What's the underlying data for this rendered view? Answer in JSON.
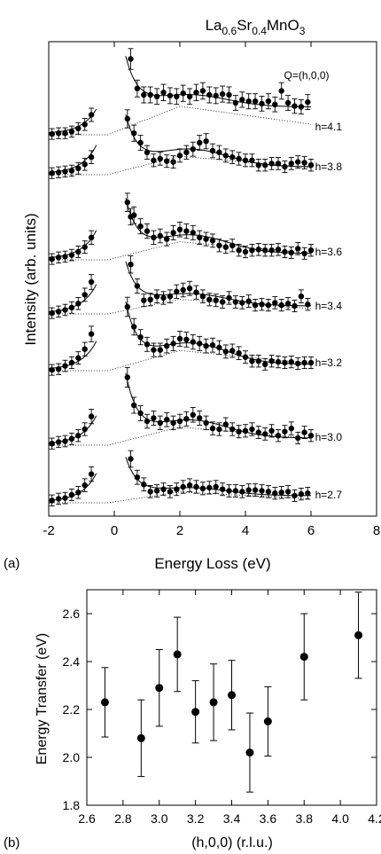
{
  "figure_title": {
    "main": "La",
    "sub1": "0.6",
    "mid": "Sr",
    "sub2": "0.4",
    "tail": "MnO",
    "sub3": "3"
  },
  "chart_data": [
    {
      "panel_label": "(a)",
      "type": "scatter",
      "xlabel": "Energy Loss (eV)",
      "ylabel": "Intensity (arb. units)",
      "xlim": [
        -2,
        8
      ],
      "xticks": [
        -2,
        0,
        2,
        4,
        6,
        8
      ],
      "y_ticks_labeled": false,
      "annotation": "Q=(h,0,0)",
      "series": [
        {
          "name": "h=4.1",
          "x": [
            -1.9,
            -1.7,
            -1.5,
            -1.3,
            -1.1,
            -0.9,
            -0.7,
            0.5,
            0.7,
            0.9,
            1.1,
            1.3,
            1.5,
            1.7,
            1.9,
            2.1,
            2.3,
            2.5,
            2.7,
            2.9,
            3.1,
            3.3,
            3.5,
            3.7,
            3.9,
            4.1,
            4.3,
            4.5,
            4.7,
            4.9,
            5.1,
            5.3,
            5.5,
            5.7,
            5.9
          ],
          "y": [
            0.01,
            0.02,
            0.02,
            0.04,
            0.08,
            0.13,
            0.25,
            0.95,
            0.58,
            0.5,
            0.5,
            0.48,
            0.53,
            0.49,
            0.48,
            0.52,
            0.48,
            0.53,
            0.55,
            0.5,
            0.49,
            0.51,
            0.5,
            0.4,
            0.44,
            0.42,
            0.42,
            0.39,
            0.42,
            0.38,
            0.55,
            0.4,
            0.36,
            0.35,
            0.41
          ]
        },
        {
          "name": "h=3.8",
          "x": [
            -1.9,
            -1.7,
            -1.5,
            -1.3,
            -1.1,
            -0.9,
            -0.7,
            0.4,
            0.6,
            0.8,
            1.0,
            1.2,
            1.4,
            1.6,
            1.8,
            2.0,
            2.2,
            2.4,
            2.6,
            2.8,
            3.0,
            3.2,
            3.4,
            3.6,
            3.8,
            4.0,
            4.2,
            4.4,
            4.6,
            4.8,
            5.0,
            5.2,
            5.4,
            5.6,
            5.8,
            6.0
          ],
          "y": [
            0.02,
            0.03,
            0.04,
            0.05,
            0.08,
            0.13,
            0.22,
            0.7,
            0.52,
            0.4,
            0.28,
            0.18,
            0.2,
            0.17,
            0.16,
            0.24,
            0.28,
            0.32,
            0.4,
            0.42,
            0.3,
            0.28,
            0.24,
            0.22,
            0.2,
            0.18,
            0.18,
            0.12,
            0.12,
            0.14,
            0.14,
            0.1,
            0.14,
            0.16,
            0.15,
            0.12
          ]
        },
        {
          "name": "h=3.6",
          "x": [
            -1.9,
            -1.7,
            -1.5,
            -1.3,
            -1.1,
            -0.9,
            -0.7,
            0.4,
            0.5,
            0.6,
            0.8,
            1.0,
            1.2,
            1.4,
            1.6,
            1.8,
            2.0,
            2.2,
            2.4,
            2.6,
            2.8,
            3.0,
            3.2,
            3.4,
            3.6,
            3.8,
            4.0,
            4.2,
            4.4,
            4.6,
            4.8,
            5.0,
            5.2,
            5.4,
            5.6,
            5.8,
            6.0
          ],
          "y": [
            0.01,
            0.03,
            0.04,
            0.06,
            0.1,
            0.16,
            0.28,
            0.72,
            0.54,
            0.56,
            0.42,
            0.36,
            0.28,
            0.3,
            0.26,
            0.34,
            0.38,
            0.36,
            0.34,
            0.28,
            0.26,
            0.24,
            0.18,
            0.16,
            0.18,
            0.12,
            0.1,
            0.12,
            0.13,
            0.12,
            0.12,
            0.13,
            0.1,
            0.09,
            0.14,
            0.08,
            0.12
          ]
        },
        {
          "name": "h=3.4",
          "x": [
            -1.9,
            -1.7,
            -1.5,
            -1.3,
            -1.1,
            -0.9,
            -0.7,
            0.5,
            0.7,
            0.9,
            1.1,
            1.3,
            1.5,
            1.7,
            1.9,
            2.1,
            2.3,
            2.5,
            2.7,
            2.9,
            3.1,
            3.3,
            3.5,
            3.7,
            3.9,
            4.1,
            4.3,
            4.5,
            4.7,
            4.9,
            5.1,
            5.3,
            5.5,
            5.7,
            5.9
          ],
          "y": [
            0.01,
            0.03,
            0.05,
            0.08,
            0.13,
            0.24,
            0.4,
            0.62,
            0.35,
            0.17,
            0.18,
            0.22,
            0.2,
            0.22,
            0.28,
            0.3,
            0.32,
            0.27,
            0.22,
            0.18,
            0.17,
            0.15,
            0.2,
            0.15,
            0.14,
            0.16,
            0.11,
            0.12,
            0.11,
            0.14,
            0.11,
            0.13,
            0.1,
            0.22,
            0.12
          ]
        },
        {
          "name": "h=3.2",
          "x": [
            -1.9,
            -1.7,
            -1.5,
            -1.3,
            -1.1,
            -0.9,
            -0.7,
            0.4,
            0.6,
            0.8,
            1.0,
            1.2,
            1.4,
            1.6,
            1.8,
            2.0,
            2.2,
            2.4,
            2.6,
            2.8,
            3.0,
            3.2,
            3.4,
            3.6,
            3.8,
            4.0,
            4.2,
            4.4,
            4.6,
            4.8,
            5.0,
            5.2,
            5.4,
            5.6,
            5.8,
            6.0
          ],
          "y": [
            0.01,
            0.02,
            0.06,
            0.1,
            0.16,
            0.27,
            0.46,
            0.8,
            0.55,
            0.42,
            0.33,
            0.26,
            0.26,
            0.31,
            0.34,
            0.4,
            0.39,
            0.36,
            0.34,
            0.31,
            0.32,
            0.29,
            0.24,
            0.25,
            0.22,
            0.17,
            0.12,
            0.12,
            0.08,
            0.12,
            0.11,
            0.1,
            0.11,
            0.09,
            0.1,
            0.1
          ]
        },
        {
          "name": "h=3.0",
          "x": [
            -1.9,
            -1.7,
            -1.5,
            -1.3,
            -1.1,
            -0.9,
            -0.7,
            0.4,
            0.6,
            0.8,
            1.0,
            1.2,
            1.4,
            1.6,
            1.8,
            2.0,
            2.2,
            2.4,
            2.6,
            2.8,
            3.0,
            3.2,
            3.4,
            3.6,
            3.8,
            4.0,
            4.2,
            4.4,
            4.6,
            4.8,
            5.0,
            5.2,
            5.4,
            5.6,
            5.8,
            6.0
          ],
          "y": [
            0.02,
            0.04,
            0.05,
            0.08,
            0.12,
            0.2,
            0.36,
            0.85,
            0.5,
            0.4,
            0.3,
            0.34,
            0.28,
            0.32,
            0.28,
            0.3,
            0.33,
            0.38,
            0.34,
            0.28,
            0.21,
            0.2,
            0.26,
            0.2,
            0.17,
            0.18,
            0.2,
            0.16,
            0.14,
            0.18,
            0.12,
            0.17,
            0.21,
            0.09,
            0.16,
            0.12
          ]
        },
        {
          "name": "h=2.7",
          "x": [
            -1.9,
            -1.7,
            -1.5,
            -1.3,
            -1.1,
            -0.9,
            -0.7,
            0.5,
            0.7,
            0.9,
            1.1,
            1.3,
            1.5,
            1.7,
            1.9,
            2.1,
            2.3,
            2.5,
            2.7,
            2.9,
            3.1,
            3.3,
            3.5,
            3.7,
            3.9,
            4.1,
            4.3,
            4.5,
            4.7,
            4.9,
            5.1,
            5.3,
            5.5,
            5.7,
            5.9
          ],
          "y": [
            0.03,
            0.05,
            0.06,
            0.1,
            0.13,
            0.22,
            0.36,
            0.55,
            0.32,
            0.23,
            0.14,
            0.15,
            0.17,
            0.14,
            0.17,
            0.2,
            0.22,
            0.2,
            0.18,
            0.19,
            0.2,
            0.17,
            0.15,
            0.15,
            0.14,
            0.16,
            0.16,
            0.15,
            0.14,
            0.12,
            0.13,
            0.14,
            0.09,
            0.11,
            0.12
          ]
        }
      ]
    },
    {
      "panel_label": "(b)",
      "type": "scatter",
      "xlabel": "(h,0,0) (r.l.u.)",
      "ylabel": "Energy Transfer (eV)",
      "xlim": [
        2.6,
        4.2
      ],
      "ylim": [
        1.8,
        2.7
      ],
      "xticks": [
        "2.6",
        "2.8",
        "3.0",
        "3.2",
        "3.4",
        "3.6",
        "3.8",
        "4.0",
        "4.2"
      ],
      "yticks": [
        "1.8",
        "2.0",
        "2.2",
        "2.4",
        "2.6"
      ],
      "x": [
        2.7,
        2.9,
        3.0,
        3.1,
        3.2,
        3.3,
        3.4,
        3.5,
        3.6,
        3.8,
        4.1
      ],
      "y": [
        2.23,
        2.08,
        2.29,
        2.43,
        2.19,
        2.23,
        2.26,
        2.02,
        2.15,
        2.42,
        2.51
      ],
      "err": [
        0.145,
        0.16,
        0.16,
        0.155,
        0.13,
        0.16,
        0.145,
        0.165,
        0.145,
        0.18,
        0.18
      ]
    }
  ]
}
